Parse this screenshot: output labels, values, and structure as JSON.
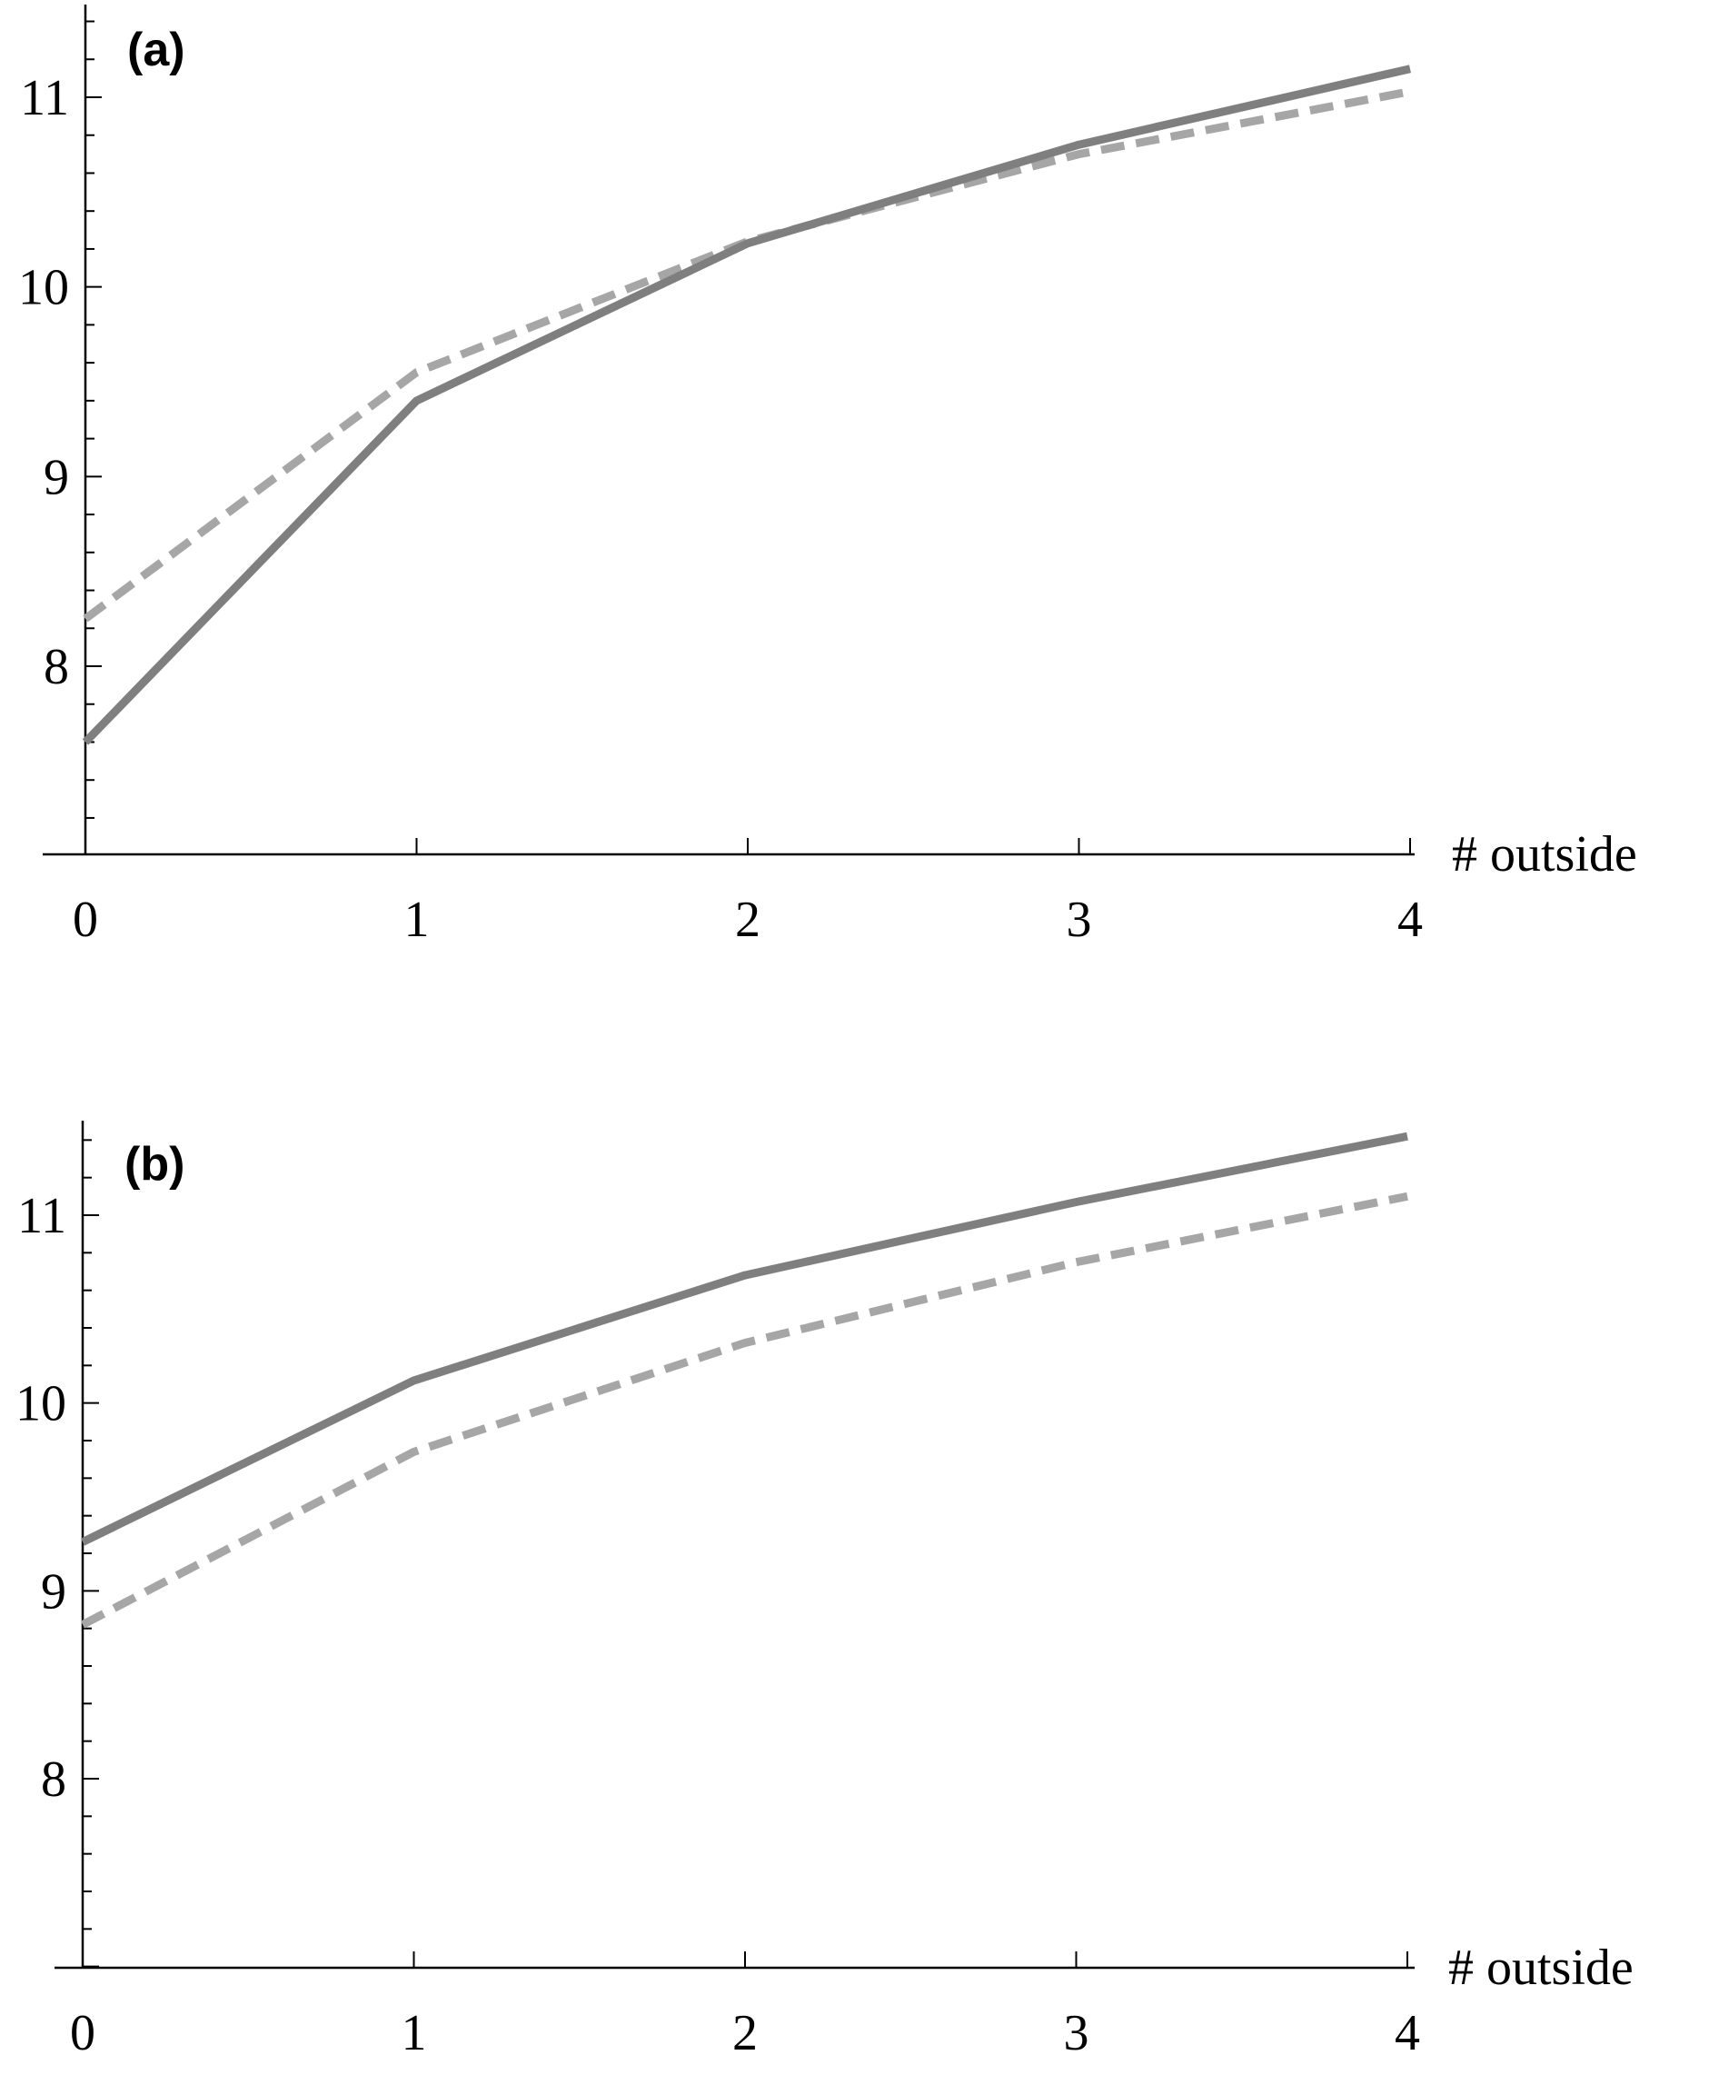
{
  "chart_data": [
    {
      "type": "line",
      "panel_label": "(a)",
      "xlabel": "# outside",
      "ylabel": "",
      "x": [
        0,
        1,
        2,
        3,
        4
      ],
      "xticks": [
        "0",
        "1",
        "2",
        "3",
        "4"
      ],
      "yticks": [
        "8",
        "9",
        "10",
        "11"
      ],
      "xlim": [
        0,
        4
      ],
      "ylim": [
        7.1,
        11.5
      ],
      "minor_y_step": 0.2,
      "grid": false,
      "series": [
        {
          "style": "solid",
          "color": "#7f7f7f",
          "values": [
            7.6,
            9.4,
            10.23,
            10.75,
            11.15
          ]
        },
        {
          "style": "dashed",
          "color": "#a6a6a6",
          "values": [
            8.25,
            9.55,
            10.24,
            10.7,
            11.03
          ]
        }
      ]
    },
    {
      "type": "line",
      "panel_label": "(b)",
      "xlabel": "# outside",
      "ylabel": "",
      "x": [
        0,
        1,
        2,
        3,
        4
      ],
      "xticks": [
        "0",
        "1",
        "2",
        "3",
        "4"
      ],
      "yticks": [
        "8",
        "9",
        "10",
        "11"
      ],
      "xlim": [
        0,
        4
      ],
      "ylim": [
        7.1,
        11.5
      ],
      "minor_y_step": 0.2,
      "grid": false,
      "series": [
        {
          "style": "solid",
          "color": "#7f7f7f",
          "values": [
            9.26,
            10.12,
            10.68,
            11.07,
            11.42
          ]
        },
        {
          "style": "dashed",
          "color": "#a6a6a6",
          "values": [
            8.82,
            9.74,
            10.32,
            10.75,
            11.1
          ]
        }
      ]
    }
  ]
}
